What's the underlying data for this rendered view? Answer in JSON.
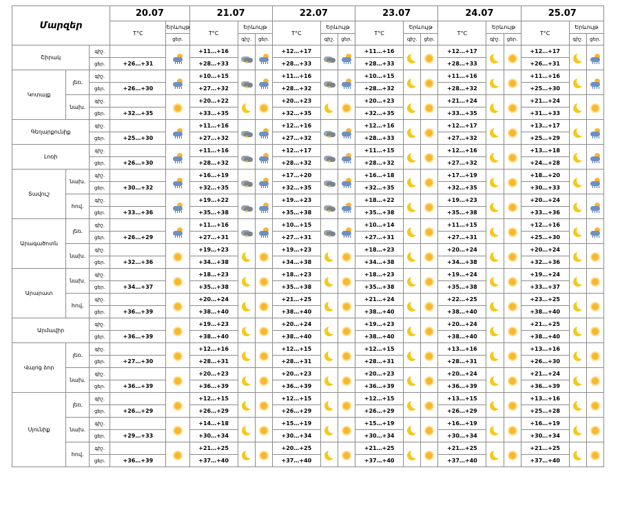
{
  "title": "Մարզեր",
  "dates": [
    "20.07",
    "21.07",
    "22.07",
    "23.07",
    "24.07",
    "25.07"
  ],
  "temp_header": "T°C",
  "condition_header": "Երևույթ",
  "night": "գիշ.",
  "day": "ցեր.",
  "rows": [
    {
      "region": "Շիրակ",
      "sub": "",
      "span": 2,
      "sub_span": 0,
      "night": {
        "temps": [
          "",
          "+11…+16",
          "+12…+17",
          "+11…+16",
          "+12…+17",
          "+12…+17"
        ]
      },
      "day": {
        "temps": [
          "+26…+31",
          "+28…+33",
          "+28…+33",
          "+28…+33",
          "+28…+33",
          "+26…+31"
        ]
      },
      "icons": [
        [
          "rain-sun-icon"
        ],
        [
          "storm-cloud-icon",
          "rain-sun-icon"
        ],
        [
          "storm-cloud-icon",
          "rain-sun-icon"
        ],
        [
          "moon-icon",
          "sun-icon"
        ],
        [
          "moon-icon",
          "sun-icon"
        ],
        [
          "moon-icon",
          "rain-sun-icon"
        ]
      ]
    },
    {
      "region": "Կոտայք",
      "sub": "լեռ.",
      "span": 4,
      "sub_span": 2,
      "night": {
        "temps": [
          "",
          "+10…+15",
          "+11…+16",
          "+10…+15",
          "+11…+16",
          "+11…+16"
        ]
      },
      "day": {
        "temps": [
          "+26…+30",
          "+27…+32",
          "+28…+32",
          "+28…+32",
          "+28…+32",
          "+25…+30"
        ]
      },
      "icons": [
        [
          "rain-sun-icon"
        ],
        [
          "storm-cloud-icon",
          "rain-sun-icon"
        ],
        [
          "storm-cloud-icon",
          "rain-sun-icon"
        ],
        [
          "moon-icon",
          "sun-icon"
        ],
        [
          "moon-icon",
          "sun-icon"
        ],
        [
          "moon-icon",
          "rain-sun-icon"
        ]
      ]
    },
    {
      "region": "",
      "sub": "նախ.",
      "span": 0,
      "sub_span": 2,
      "night": {
        "temps": [
          "",
          "+20…+22",
          "+20…+23",
          "+20…+23",
          "+21…+24",
          "+21…+24"
        ]
      },
      "day": {
        "temps": [
          "+32…+35",
          "+33…+35",
          "+32…+35",
          "+32…+35",
          "+33…+35",
          "+31…+33"
        ]
      },
      "icons": [
        [
          "sun-icon"
        ],
        [
          "moon-icon",
          "sun-icon"
        ],
        [
          "moon-icon",
          "sun-icon"
        ],
        [
          "moon-icon",
          "sun-icon"
        ],
        [
          "moon-icon",
          "sun-icon"
        ],
        [
          "moon-icon",
          "sun-icon"
        ]
      ]
    },
    {
      "region": "Գեղարքունիք",
      "sub": "",
      "span": 2,
      "sub_span": 0,
      "night": {
        "temps": [
          "",
          "+11…+16",
          "+12…+16",
          "+12…+16",
          "+12…+17",
          "+13…+17"
        ]
      },
      "day": {
        "temps": [
          "+25…+30",
          "+27…+32",
          "+27…+32",
          "+28…+33",
          "+27…+32",
          "+25…+29"
        ]
      },
      "icons": [
        [
          "rain-sun-icon"
        ],
        [
          "storm-cloud-icon",
          "rain-sun-icon"
        ],
        [
          "storm-cloud-icon",
          "rain-sun-icon"
        ],
        [
          "moon-icon",
          "sun-icon"
        ],
        [
          "moon-icon",
          "sun-icon"
        ],
        [
          "moon-icon",
          "rain-sun-icon"
        ]
      ]
    },
    {
      "region": "Լոռի",
      "sub": "",
      "span": 2,
      "sub_span": 0,
      "night": {
        "temps": [
          "",
          "+11…+16",
          "+12…+17",
          "+11…+15",
          "+12…+16",
          "+13…+18"
        ]
      },
      "day": {
        "temps": [
          "+26…+30",
          "+28…+32",
          "+28…+32",
          "+28…+32",
          "+27…+32",
          "+24…+28"
        ]
      },
      "icons": [
        [
          "rain-sun-icon"
        ],
        [
          "storm-cloud-icon",
          "rain-sun-icon"
        ],
        [
          "storm-cloud-icon",
          "rain-sun-icon"
        ],
        [
          "moon-icon",
          "sun-icon"
        ],
        [
          "moon-icon",
          "sun-icon"
        ],
        [
          "moon-icon",
          "rain-sun-icon"
        ]
      ]
    },
    {
      "region": "Տավուշ",
      "sub": "նախ.",
      "span": 4,
      "sub_span": 2,
      "night": {
        "temps": [
          "",
          "+16…+19",
          "+17…+20",
          "+16…+18",
          "+17…+19",
          "+18…+20"
        ]
      },
      "day": {
        "temps": [
          "+30…+32",
          "+32…+35",
          "+32…+35",
          "+32…+35",
          "+32…+35",
          "+30…+33"
        ]
      },
      "icons": [
        [
          "rain-sun-icon"
        ],
        [
          "storm-cloud-icon",
          "rain-sun-icon"
        ],
        [
          "storm-cloud-icon",
          "rain-sun-icon"
        ],
        [
          "moon-icon",
          "sun-icon"
        ],
        [
          "moon-icon",
          "sun-icon"
        ],
        [
          "moon-icon",
          "rain-sun-icon"
        ]
      ]
    },
    {
      "region": "",
      "sub": "հով.",
      "span": 0,
      "sub_span": 2,
      "night": {
        "temps": [
          "",
          "+19…+22",
          "+19…+23",
          "+18…+22",
          "+19…+23",
          "+20…+24"
        ]
      },
      "day": {
        "temps": [
          "+33…+36",
          "+35…+38",
          "+35…+38",
          "+35…+38",
          "+35…+38",
          "+33…+36"
        ]
      },
      "icons": [
        [
          "rain-sun-icon"
        ],
        [
          "storm-cloud-icon",
          "rain-sun-icon"
        ],
        [
          "storm-cloud-icon",
          "rain-sun-icon"
        ],
        [
          "moon-icon",
          "sun-icon"
        ],
        [
          "moon-icon",
          "sun-icon"
        ],
        [
          "moon-icon",
          "rain-sun-icon"
        ]
      ]
    },
    {
      "region": "Արագածոտն",
      "sub": "լեռ.",
      "span": 4,
      "sub_span": 2,
      "night": {
        "temps": [
          "",
          "+11…+16",
          "+10…+15",
          "+10…+14",
          "+11…+15",
          "+12…+16"
        ]
      },
      "day": {
        "temps": [
          "+26…+29",
          "+27…+31",
          "+27…+31",
          "+27…+31",
          "+27…+31",
          "+25…+30"
        ]
      },
      "icons": [
        [
          "rain-sun-icon"
        ],
        [
          "storm-cloud-icon",
          "rain-sun-icon"
        ],
        [
          "storm-cloud-icon",
          "rain-sun-icon"
        ],
        [
          "moon-icon",
          "sun-icon"
        ],
        [
          "moon-icon",
          "sun-icon"
        ],
        [
          "moon-icon",
          "rain-sun-icon"
        ]
      ]
    },
    {
      "region": "",
      "sub": "նախ.",
      "span": 0,
      "sub_span": 2,
      "night": {
        "temps": [
          "",
          "+19…+23",
          "+19…+23",
          "+18…+23",
          "+20…+24",
          "+20…+24"
        ]
      },
      "day": {
        "temps": [
          "+32…+36",
          "+34…+38",
          "+34…+38",
          "+34…+38",
          "+34…+38",
          "+32…+36"
        ]
      },
      "icons": [
        [
          "sun-icon"
        ],
        [
          "moon-icon",
          "sun-icon"
        ],
        [
          "moon-icon",
          "sun-icon"
        ],
        [
          "moon-icon",
          "sun-icon"
        ],
        [
          "moon-icon",
          "sun-icon"
        ],
        [
          "moon-icon",
          "sun-icon"
        ]
      ]
    },
    {
      "region": "Արարատ",
      "sub": "նախ.",
      "span": 4,
      "sub_span": 2,
      "night": {
        "temps": [
          "",
          "+18…+23",
          "+18…+23",
          "+18…+23",
          "+19…+24",
          "+19…+24"
        ]
      },
      "day": {
        "temps": [
          "+34…+37",
          "+35…+38",
          "+35…+38",
          "+35…+38",
          "+35…+38",
          "+33…+37"
        ]
      },
      "icons": [
        [
          "sun-icon"
        ],
        [
          "moon-icon",
          "sun-icon"
        ],
        [
          "moon-icon",
          "sun-icon"
        ],
        [
          "moon-icon",
          "sun-icon"
        ],
        [
          "moon-icon",
          "sun-icon"
        ],
        [
          "moon-icon",
          "sun-icon"
        ]
      ]
    },
    {
      "region": "",
      "sub": "հով.",
      "span": 0,
      "sub_span": 2,
      "night": {
        "temps": [
          "",
          "+20…+24",
          "+21…+25",
          "+21…+24",
          "+22…+25",
          "+23…+25"
        ]
      },
      "day": {
        "temps": [
          "+36…+39",
          "+38…+40",
          "+38…+40",
          "+38…+40",
          "+38…+40",
          "+38…+40"
        ]
      },
      "icons": [
        [
          "sun-icon"
        ],
        [
          "moon-icon",
          "sun-icon"
        ],
        [
          "moon-icon",
          "sun-icon"
        ],
        [
          "moon-icon",
          "sun-icon"
        ],
        [
          "moon-icon",
          "sun-icon"
        ],
        [
          "moon-icon",
          "sun-icon"
        ]
      ]
    },
    {
      "region": "Արմավիր",
      "sub": "",
      "span": 2,
      "sub_span": 0,
      "night": {
        "temps": [
          "",
          "+19…+23",
          "+20…+24",
          "+19…+23",
          "+20…+24",
          "+21…+25"
        ]
      },
      "day": {
        "temps": [
          "+36…+39",
          "+38…+40",
          "+38…+40",
          "+38…+40",
          "+38…+40",
          "+38…+40"
        ]
      },
      "icons": [
        [
          "sun-icon"
        ],
        [
          "moon-icon",
          "sun-icon"
        ],
        [
          "moon-icon",
          "sun-icon"
        ],
        [
          "moon-icon",
          "sun-icon"
        ],
        [
          "moon-icon",
          "sun-icon"
        ],
        [
          "moon-icon",
          "sun-icon"
        ]
      ]
    },
    {
      "region": "Վայոց ձոր",
      "sub": "լեռ.",
      "span": 4,
      "sub_span": 2,
      "night": {
        "temps": [
          "",
          "+12…+16",
          "+12…+15",
          "+12…+15",
          "+13…+16",
          "+13…+16"
        ]
      },
      "day": {
        "temps": [
          "+27…+30",
          "+28…+31",
          "+28…+31",
          "+28…+31",
          "+28…+31",
          "+26…+30"
        ]
      },
      "icons": [
        [
          "sun-icon"
        ],
        [
          "moon-icon",
          "sun-icon"
        ],
        [
          "moon-icon",
          "sun-icon"
        ],
        [
          "moon-icon",
          "sun-icon"
        ],
        [
          "moon-icon",
          "sun-icon"
        ],
        [
          "moon-icon",
          "sun-icon"
        ]
      ]
    },
    {
      "region": "",
      "sub": "նախ.",
      "span": 0,
      "sub_span": 2,
      "night": {
        "temps": [
          "",
          "+20…+23",
          "+20…+23",
          "+20…+23",
          "+20…+24",
          "+21…+24"
        ]
      },
      "day": {
        "temps": [
          "+36…+39",
          "+36…+39",
          "+36…+39",
          "+36…+39",
          "+36…+39",
          "+36…+39"
        ]
      },
      "icons": [
        [
          "sun-icon"
        ],
        [
          "moon-icon",
          "sun-icon"
        ],
        [
          "moon-icon",
          "sun-icon"
        ],
        [
          "moon-icon",
          "sun-icon"
        ],
        [
          "moon-icon",
          "sun-icon"
        ],
        [
          "moon-icon",
          "sun-icon"
        ]
      ]
    },
    {
      "region": "Սյունիք",
      "sub": "լեռ.",
      "span": 6,
      "sub_span": 2,
      "night": {
        "temps": [
          "",
          "+12…+15",
          "+12…+15",
          "+12…+15",
          "+13…+15",
          "+13…+16"
        ]
      },
      "day": {
        "temps": [
          "+26…+29",
          "+26…+29",
          "+26…+29",
          "+26…+29",
          "+26…+29",
          "+25…+28"
        ]
      },
      "icons": [
        [
          "sun-icon"
        ],
        [
          "moon-icon",
          "sun-icon"
        ],
        [
          "moon-icon",
          "sun-icon"
        ],
        [
          "moon-icon",
          "sun-icon"
        ],
        [
          "moon-icon",
          "sun-icon"
        ],
        [
          "moon-icon",
          "sun-icon"
        ]
      ]
    },
    {
      "region": "",
      "sub": "նախ.",
      "span": 0,
      "sub_span": 2,
      "night": {
        "temps": [
          "",
          "+14…+18",
          "+15…+19",
          "+15…+19",
          "+16…+19",
          "+16…+19"
        ]
      },
      "day": {
        "temps": [
          "+29…+33",
          "+30…+34",
          "+30…+34",
          "+30…+34",
          "+30…+34",
          "+30…+34"
        ]
      },
      "icons": [
        [
          "sun-icon"
        ],
        [
          "moon-icon",
          "sun-icon"
        ],
        [
          "moon-icon",
          "sun-icon"
        ],
        [
          "moon-icon",
          "sun-icon"
        ],
        [
          "moon-icon",
          "sun-icon"
        ],
        [
          "moon-icon",
          "sun-icon"
        ]
      ]
    },
    {
      "region": "",
      "sub": "հով.",
      "span": 0,
      "sub_span": 2,
      "night": {
        "temps": [
          "",
          "+21…+25",
          "+20…+25",
          "+21…+25",
          "+21…+25",
          "+21…+25"
        ]
      },
      "day": {
        "temps": [
          "+36…+39",
          "+37…+40",
          "+37…+40",
          "+37…+40",
          "+37…+40",
          "+37…+40"
        ]
      },
      "icons": [
        [
          "sun-icon"
        ],
        [
          "moon-icon",
          "sun-icon"
        ],
        [
          "moon-icon",
          "sun-icon"
        ],
        [
          "moon-icon",
          "sun-icon"
        ],
        [
          "moon-icon",
          "sun-icon"
        ],
        [
          "moon-icon",
          "sun-icon"
        ]
      ]
    }
  ]
}
